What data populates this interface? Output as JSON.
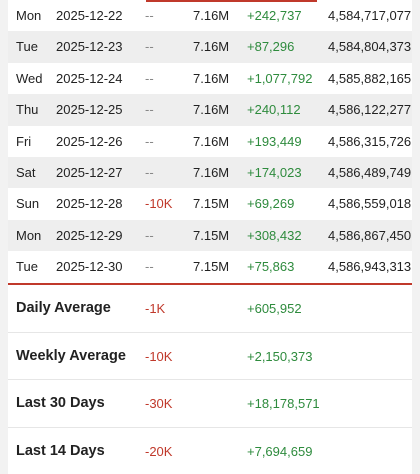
{
  "colors": {
    "accent": "#c0392b",
    "positive": "#2e8b3d",
    "negative": "#c0392b",
    "muted": "#888888",
    "stripe": "#eeeeee"
  },
  "rows": [
    {
      "day": "Mon",
      "date": "2025-12-22",
      "diff": "--",
      "avg": "7.16M",
      "change": "+242,737",
      "total": "4,584,717,077"
    },
    {
      "day": "Tue",
      "date": "2025-12-23",
      "diff": "--",
      "avg": "7.16M",
      "change": "+87,296",
      "total": "4,584,804,373"
    },
    {
      "day": "Wed",
      "date": "2025-12-24",
      "diff": "--",
      "avg": "7.16M",
      "change": "+1,077,792",
      "total": "4,585,882,165"
    },
    {
      "day": "Thu",
      "date": "2025-12-25",
      "diff": "--",
      "avg": "7.16M",
      "change": "+240,112",
      "total": "4,586,122,277"
    },
    {
      "day": "Fri",
      "date": "2025-12-26",
      "diff": "--",
      "avg": "7.16M",
      "change": "+193,449",
      "total": "4,586,315,726"
    },
    {
      "day": "Sat",
      "date": "2025-12-27",
      "diff": "--",
      "avg": "7.16M",
      "change": "+174,023",
      "total": "4,586,489,749"
    },
    {
      "day": "Sun",
      "date": "2025-12-28",
      "diff": "-10K",
      "avg": "7.15M",
      "change": "+69,269",
      "total": "4,586,559,018"
    },
    {
      "day": "Mon",
      "date": "2025-12-29",
      "diff": "--",
      "avg": "7.15M",
      "change": "+308,432",
      "total": "4,586,867,450"
    },
    {
      "day": "Tue",
      "date": "2025-12-30",
      "diff": "--",
      "avg": "7.15M",
      "change": "+75,863",
      "total": "4,586,943,313"
    }
  ],
  "summary": [
    {
      "label": "Daily Average",
      "diff": "-1K",
      "change": "+605,952"
    },
    {
      "label": "Weekly Average",
      "diff": "-10K",
      "change": "+2,150,373"
    },
    {
      "label": "Last 30 Days",
      "diff": "-30K",
      "change": "+18,178,571"
    },
    {
      "label": "Last 14 Days",
      "diff": "-20K",
      "change": "+7,694,659"
    }
  ]
}
